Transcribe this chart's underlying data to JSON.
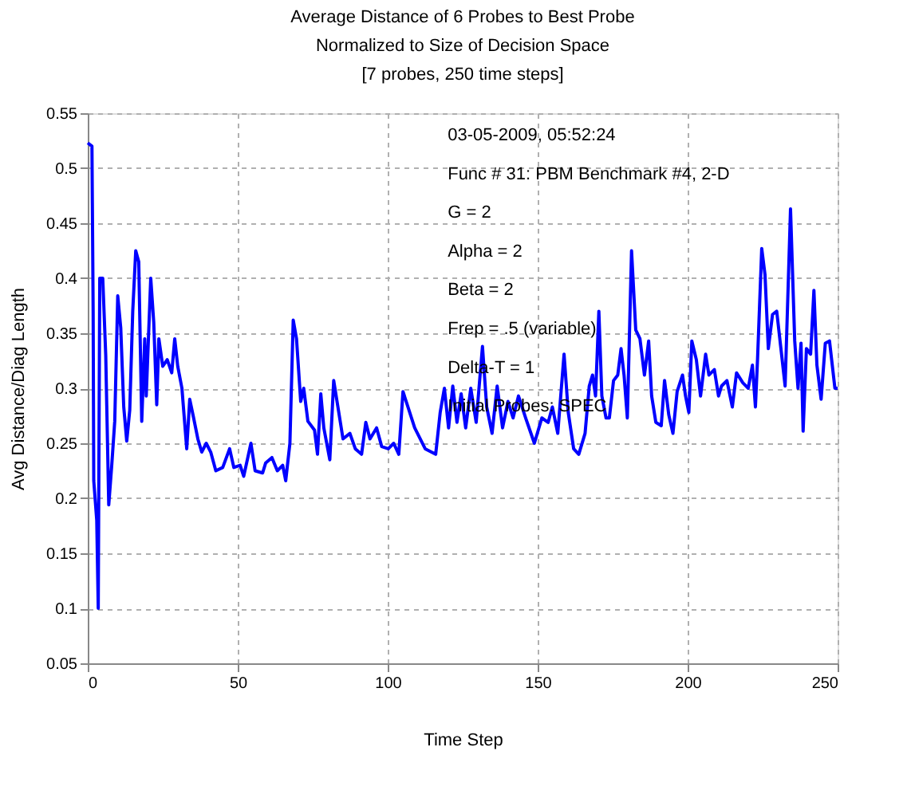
{
  "chart_data": {
    "type": "line",
    "title": "Average Distance of 6 Probes to Best Probe\nNormalized to Size of Decision Space\n[7 probes, 250 time steps]",
    "xlabel": "Time Step",
    "ylabel": "Avg Distance/Diag Length",
    "annotations": [
      "03-05-2009, 05:52:24",
      "Func # 31:  PBM Benchmark #4,  2-D",
      "G = 2",
      "Alpha = 2",
      "Beta = 2",
      "Frep =  .5 (variable)",
      "Delta-T = 1",
      "Initial Probes:  SPEC"
    ],
    "xlim": [
      0,
      250
    ],
    "xticks": [
      0,
      50,
      100,
      150,
      200,
      250
    ],
    "ylim": [
      0.05,
      0.55
    ],
    "yticks": [
      0.05,
      0.1,
      0.15,
      0.2,
      0.25,
      0.3,
      0.35,
      0.4,
      0.45,
      0.5,
      0.55
    ],
    "grid": true,
    "marker": "none",
    "line_style": "solid",
    "series": [
      {
        "color": "#0000ff",
        "x": [
          0,
          1.4,
          1.8,
          2,
          3,
          3.5,
          4,
          5,
          6,
          7,
          8,
          9,
          10,
          11,
          12,
          13,
          14,
          15,
          16,
          17,
          18,
          19,
          19.5,
          21,
          22,
          23,
          23.7,
          25,
          26.5,
          28,
          29,
          30,
          31.4,
          33,
          34,
          35.3,
          36.7,
          38,
          39.5,
          41,
          42.7,
          45,
          47.3,
          48.7,
          50.8,
          52,
          54.4,
          55.8,
          58.3,
          59.3,
          61.4,
          63.2,
          65,
          66,
          67.4,
          68.5,
          69.6,
          71,
          72,
          73.4,
          75.6,
          76.6,
          77.7,
          78.7,
          80.7,
          82,
          85.1,
          87.4,
          89.2,
          91.3,
          92.7,
          94.1,
          96.3,
          98,
          100.2,
          102,
          103.7,
          105.1,
          109,
          112.5,
          116,
          117.5,
          118.9,
          120.3,
          121.7,
          123.1,
          124.5,
          126,
          127.7,
          129.5,
          131.6,
          133,
          134.8,
          136.5,
          138.3,
          140.1,
          141.8,
          143.6,
          146,
          148.9,
          151.4,
          153.5,
          154.9,
          156.7,
          158.8,
          160.2,
          162,
          163.7,
          165.8,
          167.2,
          168.3,
          169.3,
          170.4,
          171.4,
          172.8,
          173.9,
          175.3,
          176.7,
          177.8,
          178.8,
          179.9,
          181.3,
          182.7,
          184.1,
          185.6,
          187,
          188,
          189.4,
          191.2,
          192.3,
          193.7,
          195.1,
          196.5,
          198.3,
          199.3,
          200.4,
          201.4,
          202.9,
          204.3,
          206,
          207.1,
          208.9,
          210.3,
          211.3,
          213.1,
          214.9,
          216.3,
          218.4,
          220.2,
          221.6,
          222.6,
          223.3,
          224.7,
          225.8,
          226.9,
          228.3,
          229.7,
          231.1,
          232.5,
          234.3,
          235.7,
          236.8,
          237.8,
          238.5,
          239.6,
          241,
          242.1,
          243.1,
          244.5,
          245.9,
          247.3,
          249.1,
          250
        ],
        "values": [
          0.523,
          0.52,
          0.37,
          0.216,
          0.18,
          0.1,
          0.4,
          0.4,
          0.33,
          0.194,
          0.23,
          0.27,
          0.384,
          0.355,
          0.283,
          0.252,
          0.28,
          0.37,
          0.425,
          0.415,
          0.27,
          0.345,
          0.293,
          0.4,
          0.36,
          0.285,
          0.345,
          0.32,
          0.326,
          0.314,
          0.345,
          0.32,
          0.3,
          0.245,
          0.29,
          0.273,
          0.254,
          0.242,
          0.25,
          0.242,
          0.225,
          0.228,
          0.245,
          0.228,
          0.23,
          0.22,
          0.25,
          0.225,
          0.223,
          0.232,
          0.237,
          0.225,
          0.23,
          0.216,
          0.25,
          0.362,
          0.345,
          0.288,
          0.3,
          0.27,
          0.262,
          0.24,
          0.295,
          0.264,
          0.235,
          0.307,
          0.254,
          0.259,
          0.245,
          0.24,
          0.269,
          0.254,
          0.264,
          0.247,
          0.245,
          0.25,
          0.24,
          0.297,
          0.264,
          0.245,
          0.24,
          0.278,
          0.3,
          0.264,
          0.302,
          0.269,
          0.295,
          0.264,
          0.3,
          0.269,
          0.338,
          0.283,
          0.259,
          0.302,
          0.264,
          0.288,
          0.273,
          0.293,
          0.273,
          0.25,
          0.273,
          0.269,
          0.283,
          0.259,
          0.331,
          0.278,
          0.245,
          0.24,
          0.259,
          0.302,
          0.312,
          0.293,
          0.37,
          0.293,
          0.273,
          0.273,
          0.307,
          0.312,
          0.336,
          0.312,
          0.273,
          0.425,
          0.353,
          0.345,
          0.312,
          0.343,
          0.293,
          0.269,
          0.266,
          0.307,
          0.276,
          0.259,
          0.297,
          0.312,
          0.293,
          0.278,
          0.343,
          0.326,
          0.293,
          0.331,
          0.312,
          0.317,
          0.293,
          0.302,
          0.307,
          0.283,
          0.314,
          0.305,
          0.3,
          0.321,
          0.283,
          0.326,
          0.427,
          0.403,
          0.336,
          0.367,
          0.37,
          0.336,
          0.302,
          0.463,
          0.343,
          0.3,
          0.341,
          0.261,
          0.336,
          0.331,
          0.389,
          0.321,
          0.29,
          0.341,
          0.343,
          0.3,
          0.3
        ]
      }
    ]
  }
}
